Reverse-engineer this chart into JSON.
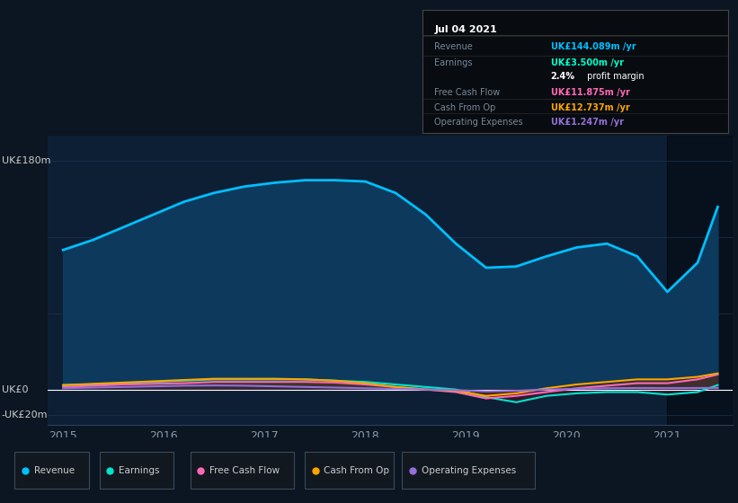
{
  "bg_color": "#0b1622",
  "plot_bg_color": "#0d1f35",
  "overlay_color": "#000000",
  "grid_color": "#1e3550",
  "tooltip_date": "Jul 04 2021",
  "years": [
    2015.0,
    2015.3,
    2015.6,
    2015.9,
    2016.2,
    2016.5,
    2016.8,
    2017.1,
    2017.4,
    2017.7,
    2018.0,
    2018.3,
    2018.6,
    2018.9,
    2019.2,
    2019.5,
    2019.8,
    2020.1,
    2020.4,
    2020.7,
    2021.0,
    2021.3,
    2021.5
  ],
  "revenue": [
    110,
    118,
    128,
    138,
    148,
    155,
    160,
    163,
    165,
    165,
    164,
    155,
    138,
    115,
    96,
    97,
    105,
    112,
    115,
    105,
    77,
    100,
    144
  ],
  "earnings": [
    3.5,
    4,
    5,
    6,
    7,
    8,
    8,
    8,
    8,
    7,
    6,
    4,
    2,
    0,
    -6,
    -10,
    -5,
    -3,
    -2,
    -2,
    -4,
    -2,
    3.5
  ],
  "free_cash_flow": [
    2,
    3,
    4,
    4.5,
    5,
    6,
    6,
    6,
    6,
    5.5,
    4,
    2,
    0,
    -2,
    -7,
    -5,
    -2,
    1,
    3,
    5,
    5,
    8,
    11.875
  ],
  "cash_from_op": [
    3.5,
    4.5,
    5.5,
    6.5,
    7.5,
    8.5,
    8.5,
    8.5,
    8,
    7,
    5,
    2,
    0,
    -1,
    -5,
    -3,
    1,
    4,
    6,
    8,
    8,
    10,
    12.737
  ],
  "operating_expenses": [
    1,
    1.5,
    2,
    2.5,
    3,
    3.2,
    3,
    2.5,
    2,
    1.5,
    1,
    0.5,
    0,
    -0.5,
    -1.5,
    -1,
    0,
    0.5,
    1,
    1.2,
    1.1,
    1.2,
    1.247
  ],
  "revenue_color": "#00bfff",
  "revenue_fill": "#0d3a5c",
  "earnings_color": "#00e5cc",
  "earnings_fill": "#00453a",
  "free_cash_flow_color": "#ff69b4",
  "cash_from_op_color": "#ffa500",
  "operating_expenses_color": "#9370db",
  "ylabel_top": "UK£180m",
  "ylabel_zero": "UK£0",
  "ylabel_neg": "-UK£20m",
  "xtick_labels": [
    "2015",
    "2016",
    "2017",
    "2018",
    "2019",
    "2020",
    "2021"
  ],
  "xtick_positions": [
    2015,
    2016,
    2017,
    2018,
    2019,
    2020,
    2021
  ],
  "legend_items": [
    {
      "label": "Revenue",
      "color": "#00bfff"
    },
    {
      "label": "Earnings",
      "color": "#00e5cc"
    },
    {
      "label": "Free Cash Flow",
      "color": "#ff69b4"
    },
    {
      "label": "Cash From Op",
      "color": "#ffa500"
    },
    {
      "label": "Operating Expenses",
      "color": "#9370db"
    }
  ],
  "overlay_start": 2021.0,
  "xmin": 2014.85,
  "xmax": 2021.65,
  "ymin": -28,
  "ymax": 200
}
